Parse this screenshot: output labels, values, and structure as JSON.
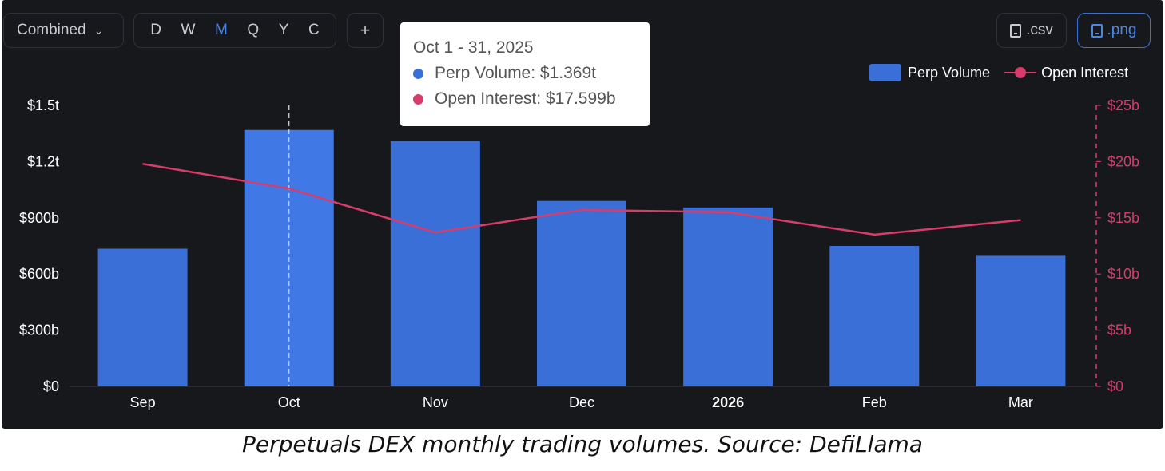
{
  "toolbar": {
    "dropdown_label": "Combined",
    "periods": [
      "D",
      "W",
      "M",
      "Q",
      "Y",
      "C"
    ],
    "active_period": "M",
    "plus_label": "+",
    "csv_label": ".csv",
    "png_label": ".png",
    "accent_color": "#4a86e8"
  },
  "legend": {
    "bar_label": "Perp Volume",
    "line_label": "Open Interest"
  },
  "tooltip": {
    "title": "Oct 1 - 31, 2025",
    "rows": [
      {
        "label": "Perp Volume: $1.369t",
        "color": "#3a6fd8"
      },
      {
        "label": "Open Interest: $17.599b",
        "color": "#d83c6a"
      }
    ]
  },
  "caption": "Perpetuals DEX monthly trading volumes. Source: DefiLlama",
  "chart_data": {
    "type": "bar",
    "categories": [
      "Sep",
      "Oct",
      "Nov",
      "Dec",
      "2026",
      "Feb",
      "Mar"
    ],
    "series": [
      {
        "name": "Perp Volume",
        "type": "bar",
        "axis": "left",
        "unit": "billion USD",
        "values": [
          735,
          1369,
          1310,
          990,
          955,
          750,
          697
        ],
        "color": "#3a6fd8"
      },
      {
        "name": "Open Interest",
        "type": "line",
        "axis": "right",
        "unit": "billion USD",
        "values": [
          19.8,
          17.6,
          13.7,
          15.7,
          15.5,
          13.5,
          14.8
        ],
        "color": "#d83c6a"
      }
    ],
    "y_left": {
      "ticks": [
        "$0",
        "$300b",
        "$600b",
        "$900b",
        "$1.2t",
        "$1.5t"
      ],
      "ylim": [
        0,
        1500
      ]
    },
    "y_right": {
      "ticks": [
        "$0",
        "$5b",
        "$10b",
        "$15b",
        "$20b",
        "$25b"
      ],
      "ylim": [
        0,
        25
      ],
      "color": "#d83c6a"
    },
    "bold_category": "2026",
    "highlighted_category": "Oct",
    "grid": false,
    "legend_position": "top-right"
  }
}
